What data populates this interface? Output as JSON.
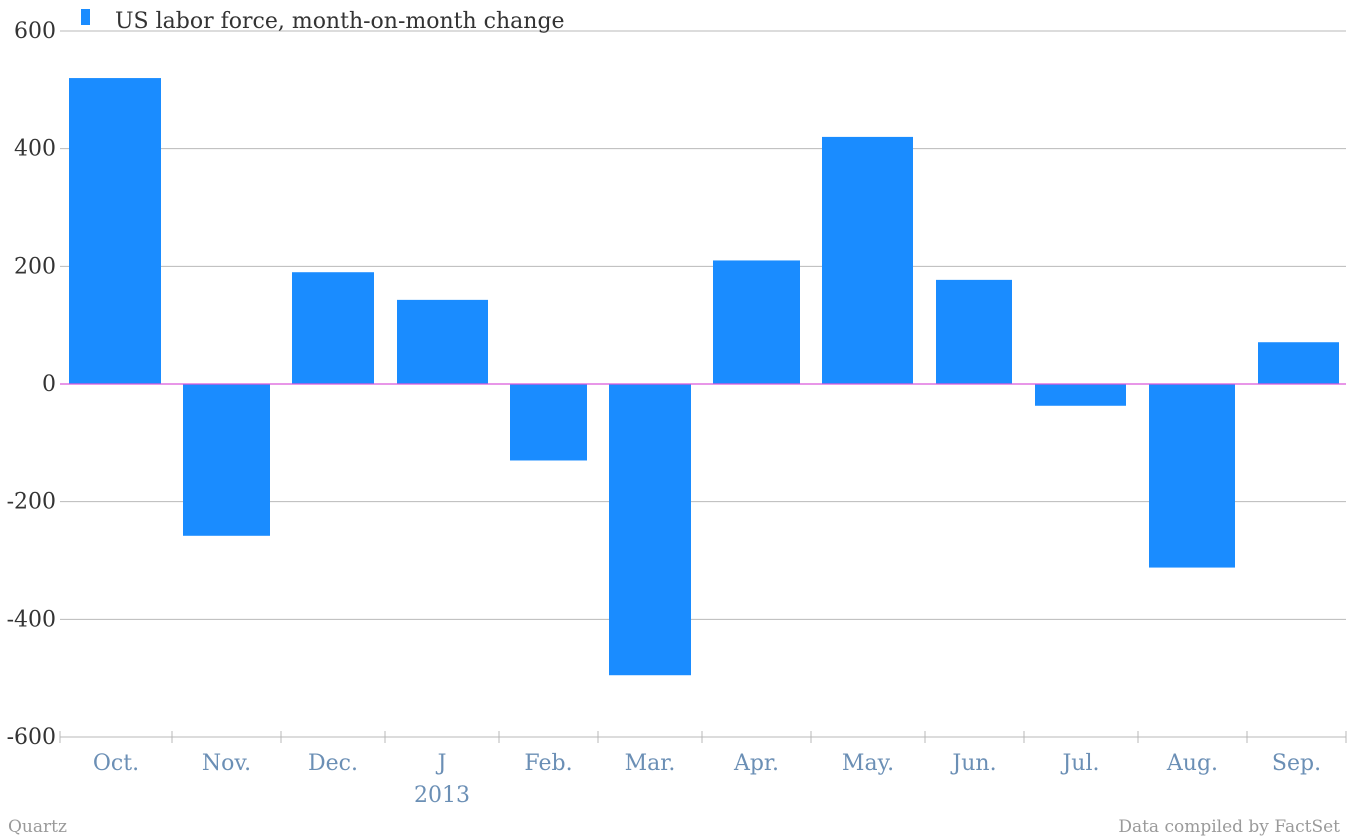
{
  "chart_data": {
    "type": "bar",
    "categories": [
      "Oct.",
      "Nov.",
      "Dec.",
      "J",
      "Feb.",
      "Mar.",
      "Apr.",
      "May.",
      "Jun.",
      "Jul.",
      "Aug.",
      "Sep."
    ],
    "category_sublabels": [
      "",
      "",
      "",
      "2013",
      "",
      "",
      "",
      "",
      "",
      "",
      "",
      ""
    ],
    "series": [
      {
        "name": "US labor force, month-on-month change",
        "values": [
          520,
          -258,
          190,
          143,
          -130,
          -495,
          210,
          420,
          177,
          -37,
          -312,
          71
        ]
      }
    ],
    "ylim": [
      -600,
      600
    ],
    "yticks": [
      600,
      400,
      200,
      0,
      -200,
      -400,
      -600
    ],
    "grid": true,
    "legend_position": "top-left",
    "colors": {
      "bar": "#1a8cff",
      "zero_line": "#d957d9",
      "grid": "#b9b9b9"
    }
  },
  "footer": {
    "source_left": "Quartz",
    "source_right": "Data compiled by FactSet"
  }
}
